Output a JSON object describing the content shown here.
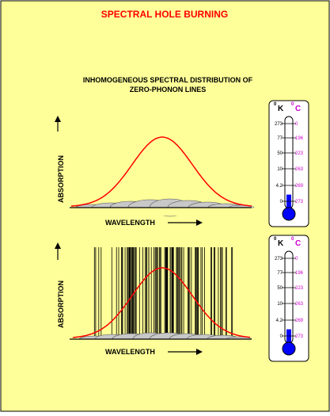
{
  "colors": {
    "background": "#ffff99",
    "title": "#ff0000",
    "curve": "#ff0000",
    "kelvin": "#000000",
    "celsius": "#cc00cc",
    "mercury": "#0000ff",
    "bands": "#c8c8c8"
  },
  "title": "SPECTRAL HOLE BURNING",
  "subtitle": {
    "line1": "INHOMOGENEOUS SPECTRAL DISTRIBUTION OF",
    "line2": "ZERO-PHONON LINES"
  },
  "panel_top": {
    "ylabel": "ABSORPTION",
    "xlabel": "WAVELENGTH"
  },
  "panel_bottom": {
    "ylabel": "ABSORPTION",
    "xlabel": "WAVELENGTH"
  },
  "thermometer_top": {
    "unit_k": "K",
    "unit_c": "C",
    "degree": "0",
    "kelvin": [
      "273",
      "77",
      "50",
      "10",
      "4.2",
      "0"
    ],
    "celsius": [
      "0",
      "196",
      "223",
      "263",
      "269",
      "273"
    ],
    "level": 0.15
  },
  "thermometer_bottom": {
    "unit_k": "K",
    "unit_c": "C",
    "degree": "0",
    "kelvin": [
      "273",
      "77",
      "50",
      "10",
      "4.2",
      "0"
    ],
    "celsius": [
      "0",
      "196",
      "223",
      "263",
      "269",
      "273"
    ],
    "level": 0.15
  },
  "icons": {
    "up_arrow": "arrow-up-icon",
    "right_arrow": "arrow-right-icon",
    "thermometer": "thermometer-icon"
  }
}
